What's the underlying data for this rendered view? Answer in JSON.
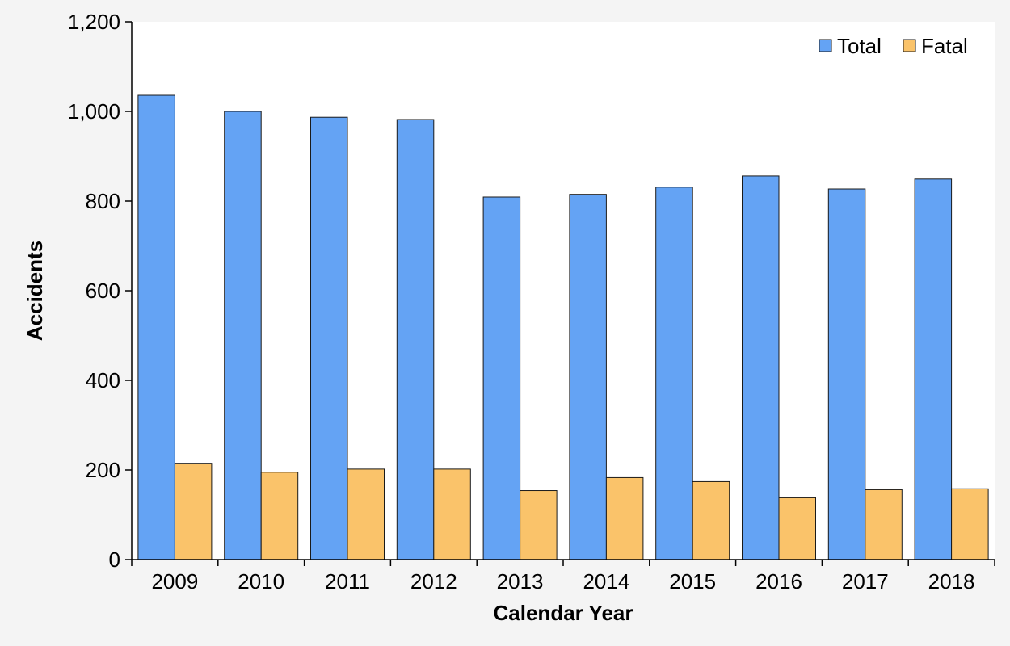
{
  "chart_data": {
    "type": "bar",
    "title": "",
    "xlabel": "Calendar Year",
    "ylabel": "Accidents",
    "categories": [
      "2009",
      "2010",
      "2011",
      "2012",
      "2013",
      "2014",
      "2015",
      "2016",
      "2017",
      "2018"
    ],
    "series": [
      {
        "name": "Total",
        "color": "#64a3f4",
        "values": [
          1036,
          1000,
          987,
          982,
          809,
          815,
          831,
          856,
          827,
          849
        ]
      },
      {
        "name": "Fatal",
        "color": "#fac36a",
        "values": [
          215,
          195,
          202,
          202,
          154,
          183,
          174,
          138,
          156,
          158
        ]
      }
    ],
    "ylim": [
      0,
      1200
    ],
    "yticks": [
      0,
      200,
      400,
      600,
      800,
      1000,
      1200
    ],
    "ytick_labels": [
      "0",
      "200",
      "400",
      "600",
      "800",
      "1,000",
      "1,200"
    ],
    "grid": false,
    "legend_position": "top-right",
    "colors": {
      "plot_background": "#ffffff",
      "page_background": "#f4f4f4",
      "bar_outline": "#1a1a1a"
    }
  }
}
